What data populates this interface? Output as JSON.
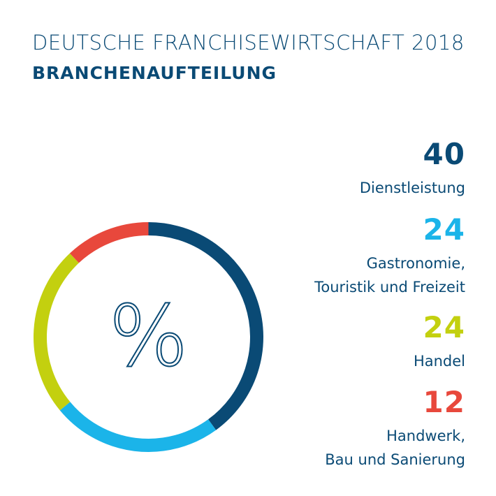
{
  "chart_data": {
    "type": "pie",
    "title": "DEUTSCHE FRANCHISEWIRTSCHAFT 2018",
    "subtitle": "BRANCHENAUFTEILUNG",
    "center_label": "%",
    "categories": [
      "Dienstleistung",
      "Gastronomie, Touristik und Freizeit",
      "Handel",
      "Handwerk, Bau und Sanierung"
    ],
    "values": [
      40,
      24,
      24,
      12
    ],
    "colors": [
      "#0a4a75",
      "#1bb4e9",
      "#c3d00f",
      "#e8483c"
    ],
    "legend_placement": "right",
    "legend": [
      {
        "value": "40",
        "lines": [
          "Dienstleistung"
        ],
        "color": "#0a4a75"
      },
      {
        "value": "24",
        "lines": [
          "Gastronomie,",
          "Touristik und Freizeit"
        ],
        "color": "#1bb4e9"
      },
      {
        "value": "24",
        "lines": [
          "Handel"
        ],
        "color": "#c3d00f"
      },
      {
        "value": "12",
        "lines": [
          "Handwerk,",
          "Bau und Sanierung"
        ],
        "color": "#e8483c"
      }
    ]
  }
}
